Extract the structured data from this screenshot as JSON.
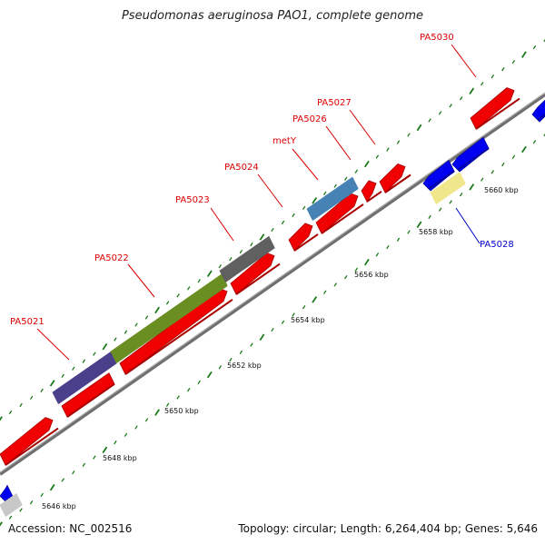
{
  "title": "Pseudomonas aeruginosa PAO1, complete genome",
  "accession": "Accession: NC_002516",
  "stats": "Topology: circular; Length: 6,264,404 bp; Genes: 5,646",
  "colors": {
    "backbone": "#8c8c8c",
    "forward_red": "#f00000",
    "forward_red_shade": "#a80000",
    "reverse_blue": "#0000f0",
    "tick_green": "#1a7a1a",
    "label_red": "#dd0000",
    "label_blue": "#0000cc"
  },
  "scale_labels": [
    "5646 kbp",
    "5648 kbp",
    "5650 kbp",
    "5652 kbp",
    "5654 kbp",
    "5656 kbp",
    "5658 kbp",
    "5660 kbp"
  ],
  "gene_labels": [
    "PA5021",
    "PA5022",
    "PA5023",
    "PA5024",
    "metY",
    "PA5026",
    "PA5027",
    "PA5030",
    "PA5028"
  ],
  "legend": {
    "labeled_genes": [
      {
        "name": "PA5021",
        "color": "#4a3f8a"
      },
      {
        "name": "PA5022",
        "color": "#6b8e23"
      },
      {
        "name": "PA5023",
        "color": "#606060"
      },
      {
        "name": "metY",
        "color": "#4682b4"
      },
      {
        "name": "PA5028",
        "color": "#f0e68c"
      }
    ]
  }
}
